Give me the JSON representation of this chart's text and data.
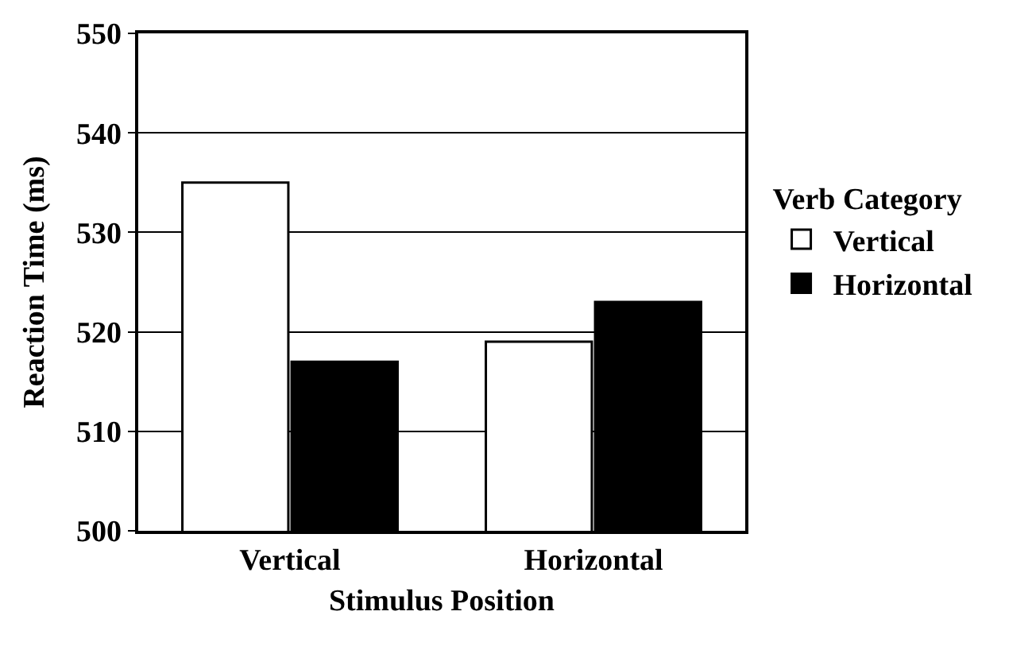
{
  "chart_data": {
    "type": "bar",
    "xlabel": "Stimulus Position",
    "ylabel": "Reaction Time (ms)",
    "legend_title": "Verb Category",
    "categories": [
      "Vertical",
      "Horizontal"
    ],
    "series": [
      {
        "name": "Vertical",
        "color": "#ffffff",
        "values": [
          535,
          519
        ]
      },
      {
        "name": "Horizontal",
        "color": "#000000",
        "values": [
          517,
          523
        ]
      }
    ],
    "ylim": [
      500,
      550
    ],
    "yticks": [
      500,
      510,
      520,
      530,
      540,
      550
    ],
    "grid": "y",
    "legend": "right"
  }
}
